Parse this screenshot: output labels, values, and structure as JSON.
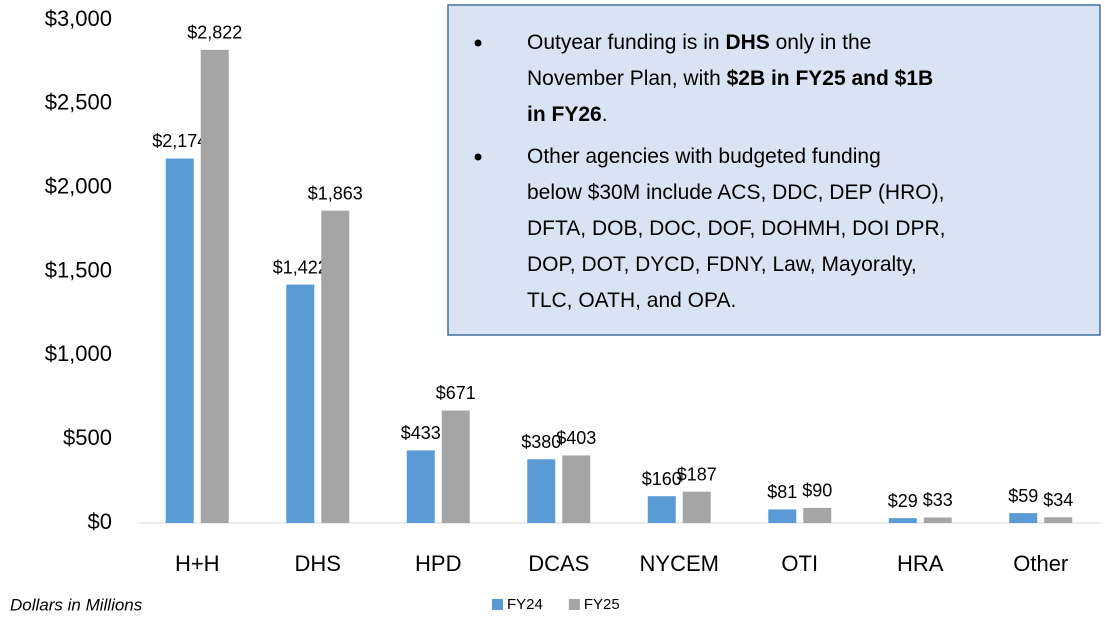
{
  "chart_data": {
    "type": "bar",
    "categories": [
      "H+H",
      "DHS",
      "HPD",
      "DCAS",
      "NYCEM",
      "OTI",
      "HRA",
      "Other"
    ],
    "series": [
      {
        "name": "FY24",
        "color": "#5b9bd5",
        "values": [
          2174,
          1422,
          433,
          380,
          160,
          81,
          29,
          59
        ],
        "value_labels": [
          "$2,174",
          "$1,422",
          "$433",
          "$380",
          "$160",
          "$81",
          "$29",
          "$59"
        ]
      },
      {
        "name": "FY25",
        "color": "#a5a5a5",
        "values": [
          2822,
          1863,
          671,
          403,
          187,
          90,
          33,
          34
        ],
        "value_labels": [
          "$2,822",
          "$1,863",
          "$671",
          "$403",
          "$187",
          "$90",
          "$33",
          "$34"
        ]
      }
    ],
    "ylim": [
      0,
      3000
    ],
    "yticks": [
      {
        "value": 0,
        "label": "$0"
      },
      {
        "value": 500,
        "label": "$500"
      },
      {
        "value": 1000,
        "label": "$1,000"
      },
      {
        "value": 1500,
        "label": "$1,500"
      },
      {
        "value": 2000,
        "label": "$2,000"
      },
      {
        "value": 2500,
        "label": "$2,500"
      },
      {
        "value": 3000,
        "label": "$3,000"
      }
    ],
    "grid": false,
    "legend": "bottom",
    "note": "Dollars in Millions",
    "annotation": [
      [
        [
          {
            "text": "Outyear funding is in ",
            "bold": false
          },
          {
            "text": "DHS",
            "bold": true
          },
          {
            "text": " only in the",
            "bold": false
          }
        ],
        [
          {
            "text": "November Plan, with ",
            "bold": false
          },
          {
            "text": "$2B in FY25 and $1B",
            "bold": true
          }
        ],
        [
          {
            "text": "in FY26",
            "bold": true
          },
          {
            "text": ".",
            "bold": false
          }
        ]
      ],
      [
        [
          {
            "text": "Other agencies with budgeted funding",
            "bold": false
          }
        ],
        [
          {
            "text": "below $30M include ACS, DDC, DEP (HRO),",
            "bold": false
          }
        ],
        [
          {
            "text": "DFTA, DOB, DOC, DOF, DOHMH, DOI DPR,",
            "bold": false
          }
        ],
        [
          {
            "text": "DOP, DOT, DYCD, FDNY, Law, Mayoralty,",
            "bold": false
          }
        ],
        [
          {
            "text": "TLC, OATH, and OPA.",
            "bold": false
          }
        ]
      ]
    ]
  }
}
